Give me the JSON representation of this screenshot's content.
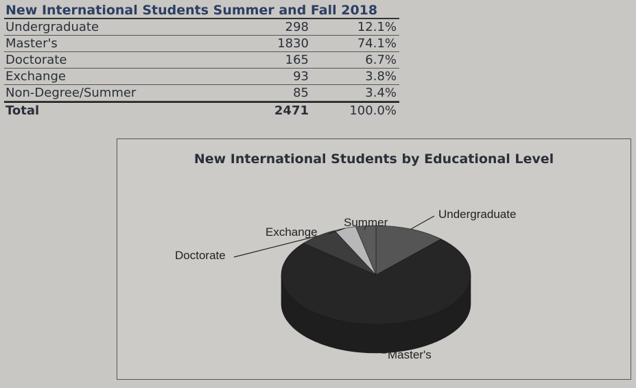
{
  "table": {
    "title": "New International Students Summer and Fall 2018",
    "rows": [
      {
        "label": "Undergraduate",
        "count": "298",
        "pct": "12.1%"
      },
      {
        "label": "Master's",
        "count": "1830",
        "pct": "74.1%"
      },
      {
        "label": "Doctorate",
        "count": "165",
        "pct": "6.7%"
      },
      {
        "label": "Exchange",
        "count": "93",
        "pct": "3.8%"
      },
      {
        "label": "Non-Degree/Summer",
        "count": "85",
        "pct": "3.4%"
      }
    ],
    "total": {
      "label": "Total",
      "count": "2471",
      "pct": "100.0%"
    }
  },
  "chart_data": {
    "type": "pie",
    "title": "New International Students by Educational Level",
    "labels": [
      "Undergraduate",
      "Master's",
      "Doctorate",
      "Exchange",
      "Summer"
    ],
    "values": [
      298,
      1830,
      165,
      93,
      85
    ],
    "percent": [
      12.1,
      74.1,
      6.7,
      3.8,
      3.4
    ],
    "colors": [
      "#555555",
      "#262626",
      "#3d3d3d",
      "#b8b8b8",
      "#5a5a5a"
    ]
  }
}
